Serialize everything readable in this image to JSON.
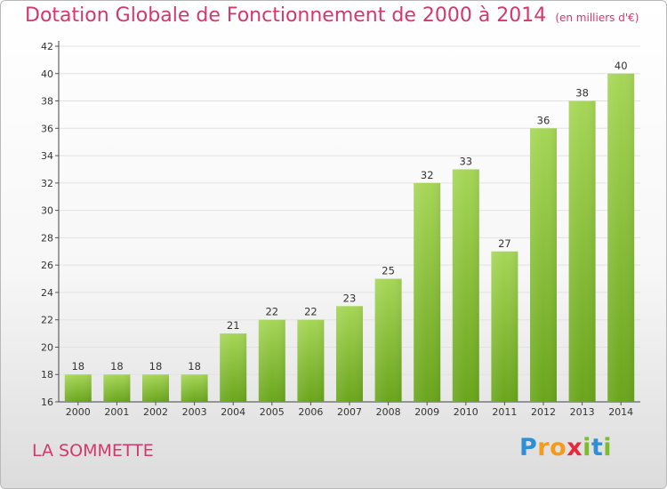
{
  "title": "Dotation Globale de Fonctionnement de 2000 à 2014",
  "unit_note": "(en milliers d'€)",
  "commune": "LA SOMMETTE",
  "logo_text": "Proxiti",
  "colors": {
    "title": "#d2386c",
    "bar_top": "#a6d657",
    "bar_bottom": "#6aa51c",
    "grid": "#e2e2e2"
  },
  "chart_data": {
    "type": "bar",
    "title": "Dotation Globale de Fonctionnement de 2000 à 2014",
    "categories": [
      "2000",
      "2001",
      "2002",
      "2003",
      "2004",
      "2005",
      "2006",
      "2007",
      "2008",
      "2009",
      "2010",
      "2011",
      "2012",
      "2013",
      "2014"
    ],
    "values": [
      18,
      18,
      18,
      18,
      21,
      22,
      22,
      23,
      25,
      32,
      33,
      27,
      36,
      38,
      40
    ],
    "ylim": [
      16,
      42
    ],
    "yticks": [
      16,
      18,
      20,
      22,
      24,
      26,
      28,
      30,
      32,
      34,
      36,
      38,
      40,
      42
    ],
    "grid": "horizontal",
    "xlabel": "",
    "ylabel": ""
  }
}
